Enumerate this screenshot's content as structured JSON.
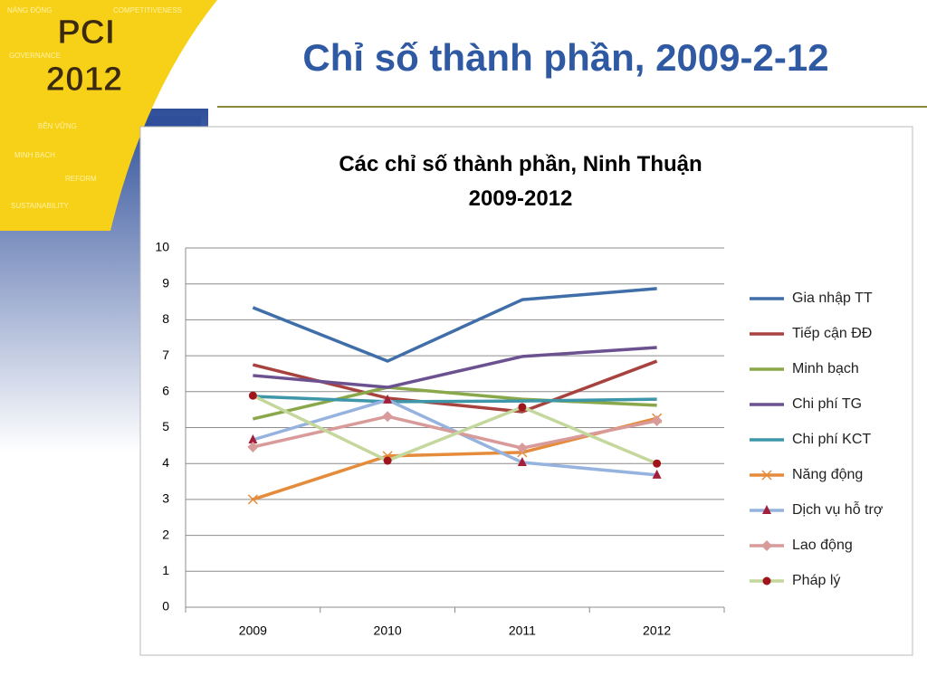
{
  "slide_title": "Chỉ số thành phần, 2009-2-12",
  "logo": {
    "title": "PCI",
    "year": "2012",
    "words": [
      "NĂNG ĐỘNG",
      "COMPETITIVENESS",
      "GOVERNANCE",
      "BỀN VỮNG",
      "MINH BẠCH",
      "REFORM",
      "SUSTAINABILITY"
    ]
  },
  "chart_data": {
    "type": "line",
    "title": "Các chỉ số thành phần, Ninh Thuận 2009-2012",
    "categories": [
      "2009",
      "2010",
      "2011",
      "2012"
    ],
    "ylim": [
      0,
      10
    ],
    "yticks": [
      0,
      1,
      2,
      3,
      4,
      5,
      6,
      7,
      8,
      9,
      10
    ],
    "grid": true,
    "legend": "right",
    "series": [
      {
        "name": "Gia nhập TT",
        "color": "#3f6ea8",
        "marker": "none",
        "values": [
          8.34,
          6.85,
          8.56,
          8.87
        ]
      },
      {
        "name": "Tiếp cận ĐĐ",
        "color": "#a8423e",
        "marker": "none",
        "values": [
          6.75,
          5.82,
          5.44,
          6.85
        ]
      },
      {
        "name": "Minh bạch",
        "color": "#8aa84a",
        "marker": "none",
        "values": [
          5.24,
          6.12,
          5.79,
          5.62
        ]
      },
      {
        "name": "Chi phí TG",
        "color": "#6b5190",
        "marker": "none",
        "values": [
          6.45,
          6.12,
          6.98,
          7.23
        ]
      },
      {
        "name": "Chi phí KCT",
        "color": "#3d97a8",
        "marker": "none",
        "values": [
          5.87,
          5.72,
          5.74,
          5.79
        ]
      },
      {
        "name": "Năng động",
        "color": "#e58c3c",
        "marker": "x",
        "marker_color": "#e58c3c",
        "values": [
          3.0,
          4.21,
          4.31,
          5.26
        ]
      },
      {
        "name": "Dịch vụ hỗ trợ",
        "color": "#95b3de",
        "marker": "triangle",
        "marker_color": "#a31f3a",
        "values": [
          4.66,
          5.77,
          4.03,
          3.68
        ]
      },
      {
        "name": "Lao động",
        "color": "#d99a9a",
        "marker": "diamond",
        "marker_color": "#d99a9a",
        "values": [
          4.46,
          5.31,
          4.43,
          5.19
        ]
      },
      {
        "name": "Pháp lý",
        "color": "#c4d79c",
        "marker": "circle",
        "marker_color": "#a0141c",
        "values": [
          5.89,
          4.08,
          5.57,
          4.0
        ]
      }
    ]
  }
}
